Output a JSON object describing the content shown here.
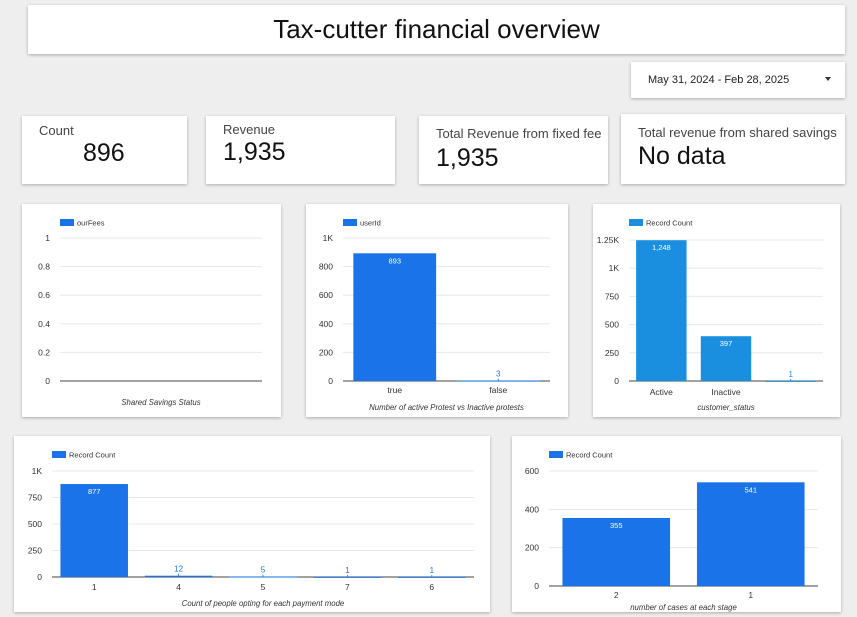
{
  "header": {
    "title": "Tax-cutter financial overview"
  },
  "date_range": {
    "label": "May 31, 2024 - Feb 28, 2025"
  },
  "kpis": [
    {
      "label": "Count",
      "value": "896"
    },
    {
      "label": "Revenue",
      "value": "1,935"
    },
    {
      "label": "Total Revenue from fixed fee",
      "value": "1,935"
    },
    {
      "label": "Total revenue from shared savings",
      "value": "No data"
    }
  ],
  "colors": {
    "bar": "#1a73e8",
    "bar_cyan": "#1a8fe0",
    "grid": "#e8e8e8",
    "axis": "#444444"
  },
  "chart_data": [
    {
      "type": "bar",
      "legend": "ourFees",
      "xlabel": "Shared Savings Status",
      "categories": [],
      "values": [],
      "yticks": [
        "0",
        "0.2",
        "0.4",
        "0.6",
        "0.8",
        "1"
      ],
      "ylim": [
        0,
        1
      ],
      "color": "#1a73e8"
    },
    {
      "type": "bar",
      "legend": "userId",
      "xlabel": "Number of active Protest vs Inactive protests",
      "categories": [
        "true",
        "false"
      ],
      "values": [
        893,
        3
      ],
      "labels": [
        "893",
        "3"
      ],
      "yticks": [
        "0",
        "200",
        "400",
        "600",
        "800",
        "1K"
      ],
      "ylim": [
        0,
        1000
      ],
      "color": "#1a73e8"
    },
    {
      "type": "bar",
      "legend": "Record Count",
      "xlabel": "customer_status",
      "categories": [
        "Active",
        "Inactive",
        ""
      ],
      "values": [
        1248,
        397,
        1
      ],
      "labels": [
        "1,248",
        "397",
        "1"
      ],
      "yticks": [
        "0",
        "250",
        "500",
        "750",
        "1K",
        "1.25K"
      ],
      "ylim": [
        0,
        1250
      ],
      "color": "#1a8fe0"
    },
    {
      "type": "bar",
      "legend": "Record Count",
      "xlabel": "Count of people opting for each payment mode",
      "categories": [
        "1",
        "4",
        "5",
        "7",
        "6"
      ],
      "values": [
        877,
        12,
        5,
        1,
        1
      ],
      "labels": [
        "877",
        "12",
        "5",
        "1",
        "1"
      ],
      "yticks": [
        "0",
        "250",
        "500",
        "750",
        "1K"
      ],
      "ylim": [
        0,
        1000
      ],
      "color": "#1a73e8"
    },
    {
      "type": "bar",
      "legend": "Record Count",
      "xlabel": "number of cases at each stage",
      "categories": [
        "2",
        "1"
      ],
      "values": [
        355,
        541
      ],
      "labels": [
        "355",
        "541"
      ],
      "yticks": [
        "0",
        "200",
        "400",
        "600"
      ],
      "ylim": [
        0,
        600
      ],
      "color": "#1a73e8"
    }
  ]
}
